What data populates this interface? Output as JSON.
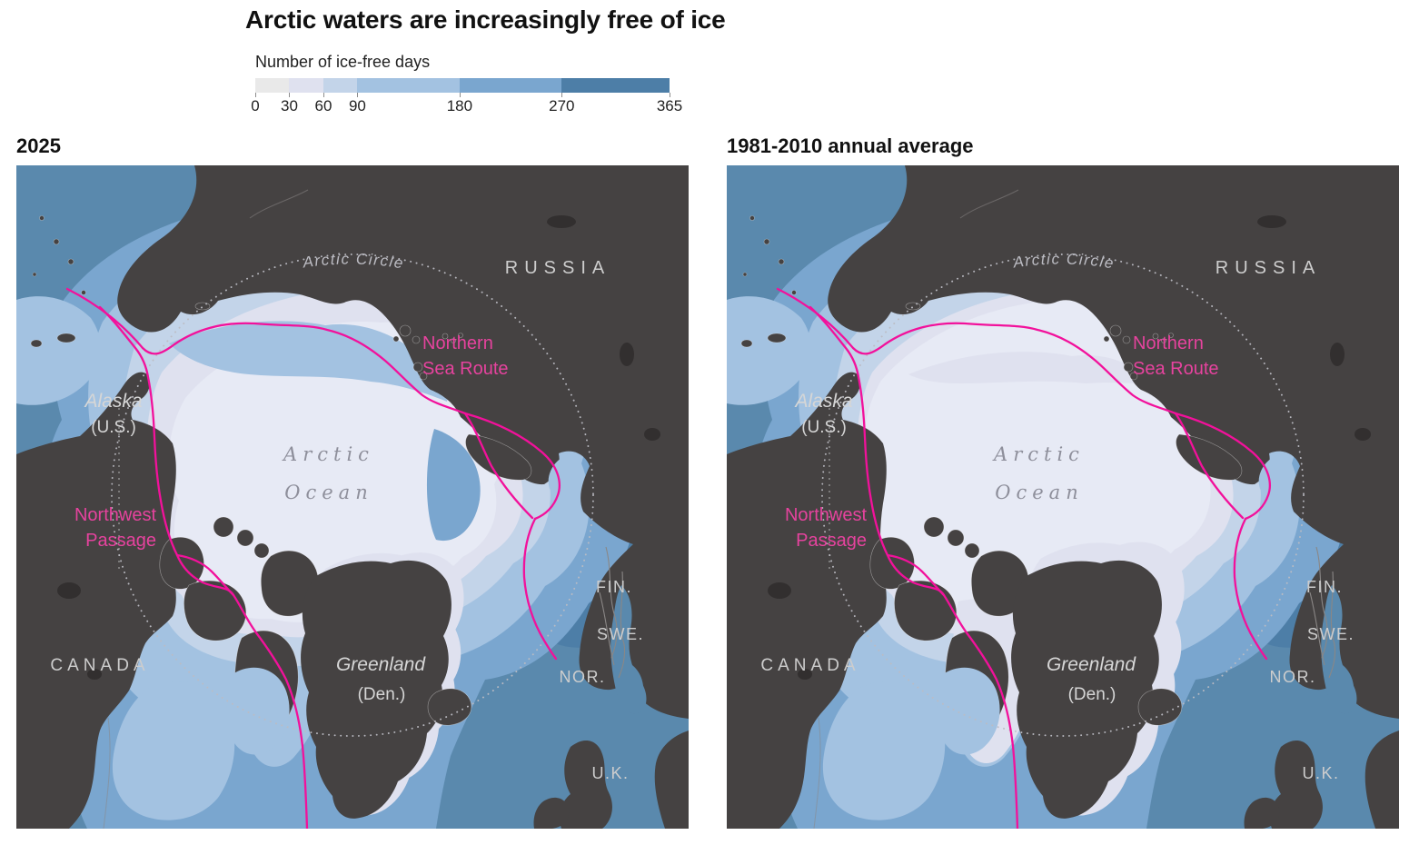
{
  "title": "Arctic waters are increasingly free of ice",
  "legend": {
    "label": "Number of ice-free days",
    "ticks": [
      "0",
      "30",
      "60",
      "90",
      "180",
      "270",
      "365"
    ],
    "tick_values": [
      0,
      30,
      60,
      90,
      180,
      270,
      365
    ],
    "max_days": 365,
    "segment_colors": [
      "#e9e9e9",
      "#dfe1ef",
      "#c3d4e9",
      "#a3c2e1",
      "#7aa6cf",
      "#4d7ea7"
    ]
  },
  "maps": [
    {
      "title": "2025",
      "variant": "v2025"
    },
    {
      "title": "1981-2010 annual average",
      "variant": "vavg"
    }
  ],
  "map_labels": {
    "arctic_circle": "Arctic Circle",
    "russia": "RUSSIA",
    "nsr_line1": "Northern",
    "nsr_line2": "Sea Route",
    "alaska": "Alaska",
    "alaska_sub": "(U.S.)",
    "ocean_line1": "Arctic",
    "ocean_line2": "Ocean",
    "nwp_line1": "Northwest",
    "nwp_line2": "Passage",
    "canada": "CANADA",
    "greenland": "Greenland",
    "greenland_sub": "(Den.)",
    "fin": "FIN.",
    "swe": "SWE.",
    "nor": "NOR.",
    "uk": "U.K."
  },
  "colors": {
    "title_color": "#111111",
    "text_color": "#222222",
    "ocean": "#5a89ad",
    "ocean_deep": "#4d7ea7",
    "ice180": "#7aa6cf",
    "ice90": "#a3c2e1",
    "ice60": "#c3d4e9",
    "ice30": "#dfe1ef",
    "ice0": "#e7eaf5",
    "land": "#454242",
    "land_dark": "#322f2f",
    "border": "#8a8786",
    "route": "#f2119b",
    "route_label": "#e6439e",
    "label_light": "#cdcdcd",
    "label_bright": "#d6d6d6",
    "label_muted": "#bcbcc3",
    "ocean_label": "#8e8f9b"
  }
}
